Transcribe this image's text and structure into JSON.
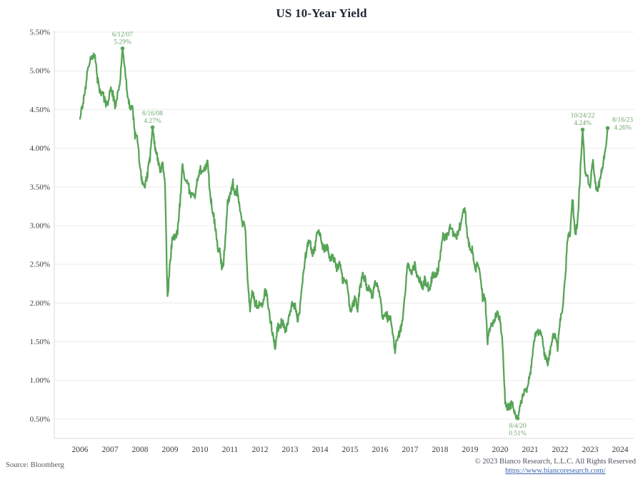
{
  "footer": {
    "source": "Source: Bloomberg",
    "copyright": "© 2023 Bianco Research, L.L.C. All Rights Reserved",
    "link": "https://www.biancoresearch.com/"
  },
  "colors": {
    "line": "#57a457",
    "annotation": "#6fa86c",
    "title": "#1f2733",
    "axis_text": "#3d3d3d",
    "grid": "#ececec",
    "spine": "#d9d9d9",
    "background": "#ffffff"
  },
  "chart_data": {
    "type": "line",
    "title": "US 10-Year Yield",
    "series_name": "US 10-Year Yield",
    "source": "Bloomberg",
    "frequency": "monthly",
    "start_year": 2006,
    "xlabel": "",
    "ylabel": "",
    "grid": "horizontal",
    "ylim": [
      0.25,
      5.5
    ],
    "xlim": [
      2006,
      2024.5
    ],
    "yticks": [
      "5.50%",
      "5.00%",
      "4.50%",
      "4.00%",
      "3.50%",
      "3.00%",
      "2.50%",
      "2.00%",
      "1.50%",
      "1.00%",
      "0.50%"
    ],
    "xticks": [
      "2006",
      "2007",
      "2008",
      "2009",
      "2010",
      "2011",
      "2012",
      "2013",
      "2014",
      "2015",
      "2016",
      "2017",
      "2018",
      "2019",
      "2020",
      "2021",
      "2022",
      "2023",
      "2024"
    ],
    "values": [
      4.38,
      4.57,
      4.72,
      4.99,
      5.11,
      5.2,
      5.18,
      4.88,
      4.72,
      4.73,
      4.6,
      4.56,
      4.76,
      4.72,
      4.56,
      4.69,
      4.86,
      5.29,
      5.0,
      4.67,
      4.52,
      4.53,
      4.15,
      4.1,
      3.74,
      3.53,
      3.51,
      3.68,
      3.88,
      4.27,
      4.01,
      3.89,
      3.69,
      3.81,
      3.53,
      2.06,
      2.52,
      2.87,
      2.82,
      2.93,
      3.29,
      3.84,
      3.56,
      3.59,
      3.4,
      3.39,
      3.4,
      3.59,
      3.73,
      3.69,
      3.73,
      3.85,
      3.42,
      3.2,
      3.01,
      2.7,
      2.65,
      2.41,
      2.76,
      3.29,
      3.39,
      3.58,
      3.41,
      3.46,
      3.17,
      3.0,
      3.0,
      2.3,
      1.92,
      2.15,
      2.01,
      1.98,
      1.97,
      1.97,
      2.17,
      2.05,
      1.8,
      1.62,
      1.43,
      1.68,
      1.72,
      1.75,
      1.65,
      1.72,
      1.91,
      1.98,
      1.96,
      1.76,
      1.93,
      2.3,
      2.58,
      2.74,
      2.81,
      2.62,
      2.72,
      2.96,
      2.86,
      2.71,
      2.72,
      2.71,
      2.56,
      2.6,
      2.54,
      2.42,
      2.53,
      2.3,
      2.33,
      2.21,
      1.88,
      1.98,
      2.04,
      1.94,
      2.2,
      2.36,
      2.32,
      2.17,
      2.17,
      2.07,
      2.26,
      2.24,
      2.09,
      1.78,
      1.89,
      1.81,
      1.81,
      1.64,
      1.37,
      1.56,
      1.63,
      1.76,
      2.14,
      2.49,
      2.43,
      2.42,
      2.48,
      2.3,
      2.3,
      2.19,
      2.32,
      2.21,
      2.2,
      2.36,
      2.35,
      2.4,
      2.58,
      2.86,
      2.84,
      2.87,
      2.98,
      2.91,
      2.89,
      2.89,
      3.0,
      3.15,
      3.22,
      2.83,
      2.71,
      2.68,
      2.41,
      2.53,
      2.4,
      2.07,
      2.06,
      1.5,
      1.7,
      1.71,
      1.81,
      1.86,
      1.76,
      1.45,
      0.72,
      0.64,
      0.68,
      0.7,
      0.58,
      0.51,
      0.68,
      0.8,
      0.86,
      0.92,
      1.08,
      1.34,
      1.61,
      1.64,
      1.62,
      1.52,
      1.3,
      1.22,
      1.37,
      1.58,
      1.56,
      1.44,
      1.78,
      1.93,
      2.32,
      2.85,
      2.9,
      3.35,
      2.88,
      3.05,
      3.65,
      4.24,
      3.7,
      3.62,
      3.48,
      3.85,
      3.55,
      3.44,
      3.62,
      3.78,
      3.93,
      4.26
    ],
    "callouts": [
      {
        "date": "6/12/07",
        "value_label": "5.29%",
        "value": 5.29,
        "month_index": 17,
        "placement": "above"
      },
      {
        "date": "6/16/08",
        "value_label": "4.27%",
        "value": 4.27,
        "month_index": 29,
        "placement": "above"
      },
      {
        "date": "8/4/20",
        "value_label": "0.51%",
        "value": 0.51,
        "month_index": 175,
        "placement": "below"
      },
      {
        "date": "10/24/22",
        "value_label": "4.24%",
        "value": 4.24,
        "month_index": 201,
        "placement": "above"
      },
      {
        "date": "8/16/23",
        "value_label": "4.26%",
        "value": 4.26,
        "month_index": 211,
        "placement": "above-right"
      }
    ]
  }
}
